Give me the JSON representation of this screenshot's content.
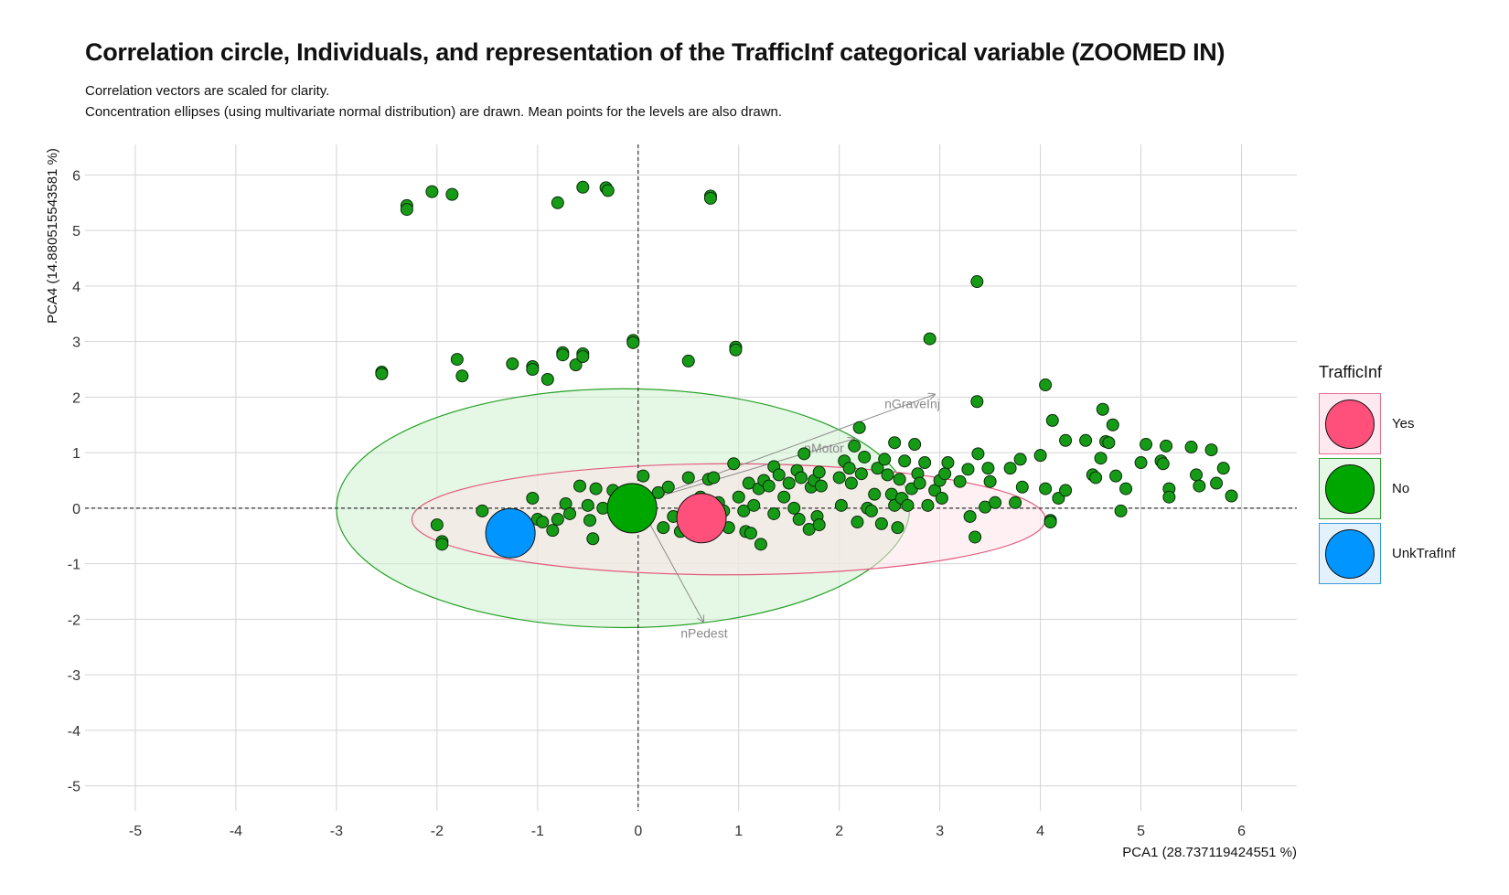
{
  "chart_data": {
    "type": "scatter",
    "title": "Correlation circle, Individuals, and representation of the TrafficInf categorical variable (ZOOMED IN)",
    "subtitle": [
      "Correlation vectors are scaled for clarity.",
      "Concentration ellipses (using multivariate normal distribution) are drawn. Mean points for the levels are also drawn."
    ],
    "xlabel": "PCA1 (28.737119424551 %)",
    "ylabel": "PCA4 (14.880515543581 %)",
    "xlim": [
      -5.5,
      6.55
    ],
    "ylim": [
      -5.55,
      6.55
    ],
    "xticks": [
      -5,
      -4,
      -3,
      -2,
      -1,
      0,
      1,
      2,
      3,
      4,
      5,
      6
    ],
    "yticks": [
      -5,
      -4,
      -3,
      -2,
      -1,
      0,
      1,
      2,
      3,
      4,
      5,
      6
    ],
    "grid": true,
    "legend": {
      "title": "TrafficInf",
      "placement": "right",
      "entries": [
        {
          "label": "Yes",
          "color": "#FF4F7B",
          "key_fill": "#FFE8EF",
          "key_border": "#E5738F"
        },
        {
          "label": "No",
          "color": "#00A600",
          "key_fill": "#E5F7E5",
          "key_border": "#35A335"
        },
        {
          "label": "UnkTrafInf",
          "color": "#0095FF",
          "key_fill": "#E3F1FC",
          "key_border": "#3A9AD9"
        }
      ]
    },
    "point_color": "#169B16",
    "ellipses": [
      {
        "level": "No",
        "center": [
          -0.15,
          0.0
        ],
        "rx": 2.85,
        "ry": 2.15,
        "stroke": "#27A127",
        "fill": "#CFF0CF"
      },
      {
        "level": "Yes",
        "center": [
          0.9,
          -0.2
        ],
        "rx": 3.15,
        "ry": 1.0,
        "stroke": "#E25B7E",
        "fill": "#FDE3EA"
      }
    ],
    "mean_points": [
      {
        "level": "UnkTrafInf",
        "x": -1.27,
        "y": -0.45,
        "color": "#0095FF"
      },
      {
        "level": "No",
        "x": -0.06,
        "y": 0.0,
        "color": "#00A600"
      },
      {
        "level": "Yes",
        "x": 0.63,
        "y": -0.18,
        "color": "#FF4F7B"
      }
    ],
    "vectors": [
      {
        "label": "nGraveInj",
        "x": 2.95,
        "y": 2.05
      },
      {
        "label": "nMotor",
        "x": 2.15,
        "y": 1.25
      },
      {
        "label": "nPedest",
        "x": 0.65,
        "y": -2.05
      }
    ],
    "points": [
      [
        -2.3,
        5.45
      ],
      [
        -2.3,
        5.38
      ],
      [
        -2.05,
        5.7
      ],
      [
        -1.85,
        5.65
      ],
      [
        -0.8,
        5.5
      ],
      [
        -0.55,
        5.78
      ],
      [
        -0.32,
        5.77
      ],
      [
        -0.3,
        5.72
      ],
      [
        0.72,
        5.62
      ],
      [
        0.72,
        5.58
      ],
      [
        -2.55,
        2.45
      ],
      [
        -2.55,
        2.42
      ],
      [
        -1.8,
        2.68
      ],
      [
        -1.75,
        2.38
      ],
      [
        -1.25,
        2.6
      ],
      [
        -1.05,
        2.55
      ],
      [
        -1.05,
        2.5
      ],
      [
        -0.9,
        2.32
      ],
      [
        -0.75,
        2.8
      ],
      [
        -0.75,
        2.76
      ],
      [
        -0.62,
        2.58
      ],
      [
        -0.55,
        2.78
      ],
      [
        -0.55,
        2.73
      ],
      [
        -0.05,
        3.02
      ],
      [
        -0.05,
        2.98
      ],
      [
        0.5,
        2.65
      ],
      [
        0.97,
        2.9
      ],
      [
        0.97,
        2.85
      ],
      [
        2.9,
        3.05
      ],
      [
        3.37,
        4.08
      ],
      [
        3.37,
        1.92
      ],
      [
        4.05,
        2.22
      ],
      [
        -2.0,
        -0.3
      ],
      [
        -1.95,
        -0.6
      ],
      [
        -1.95,
        -0.65
      ],
      [
        -1.55,
        -0.05
      ],
      [
        -1.05,
        0.18
      ],
      [
        -1.0,
        -0.2
      ],
      [
        -0.95,
        -0.25
      ],
      [
        -0.85,
        -0.4
      ],
      [
        -0.8,
        -0.2
      ],
      [
        -0.72,
        0.08
      ],
      [
        -0.68,
        -0.1
      ],
      [
        -0.58,
        0.4
      ],
      [
        -0.5,
        0.05
      ],
      [
        -0.48,
        -0.22
      ],
      [
        -0.45,
        -0.55
      ],
      [
        -0.42,
        0.35
      ],
      [
        -0.35,
        0.0
      ],
      [
        -0.25,
        0.32
      ],
      [
        0.05,
        0.58
      ],
      [
        0.2,
        0.28
      ],
      [
        0.25,
        -0.35
      ],
      [
        0.3,
        0.38
      ],
      [
        0.35,
        -0.15
      ],
      [
        0.42,
        -0.42
      ],
      [
        0.5,
        0.55
      ],
      [
        0.55,
        -0.05
      ],
      [
        0.62,
        0.2
      ],
      [
        0.7,
        0.52
      ],
      [
        0.75,
        0.55
      ],
      [
        0.8,
        0.1
      ],
      [
        0.85,
        -0.05
      ],
      [
        0.9,
        -0.35
      ],
      [
        0.95,
        0.8
      ],
      [
        1.0,
        0.2
      ],
      [
        1.05,
        -0.05
      ],
      [
        1.07,
        -0.42
      ],
      [
        1.1,
        0.45
      ],
      [
        1.12,
        -0.45
      ],
      [
        1.15,
        0.05
      ],
      [
        1.2,
        0.35
      ],
      [
        1.22,
        -0.65
      ],
      [
        1.25,
        0.5
      ],
      [
        1.3,
        0.4
      ],
      [
        1.35,
        0.75
      ],
      [
        1.35,
        -0.1
      ],
      [
        1.4,
        0.6
      ],
      [
        1.45,
        0.2
      ],
      [
        1.5,
        0.45
      ],
      [
        1.55,
        0.0
      ],
      [
        1.58,
        0.68
      ],
      [
        1.6,
        -0.2
      ],
      [
        1.62,
        0.55
      ],
      [
        1.65,
        0.98
      ],
      [
        1.7,
        -0.38
      ],
      [
        1.72,
        0.38
      ],
      [
        1.75,
        0.5
      ],
      [
        1.78,
        -0.15
      ],
      [
        1.8,
        0.65
      ],
      [
        1.8,
        -0.3
      ],
      [
        1.82,
        0.4
      ],
      [
        2.0,
        0.55
      ],
      [
        2.02,
        0.05
      ],
      [
        2.05,
        0.85
      ],
      [
        2.1,
        0.72
      ],
      [
        2.12,
        0.45
      ],
      [
        2.15,
        1.12
      ],
      [
        2.18,
        -0.25
      ],
      [
        2.2,
        1.45
      ],
      [
        2.22,
        0.62
      ],
      [
        2.25,
        0.92
      ],
      [
        2.28,
        0.0
      ],
      [
        2.32,
        -0.05
      ],
      [
        2.35,
        0.25
      ],
      [
        2.38,
        0.72
      ],
      [
        2.42,
        -0.28
      ],
      [
        2.45,
        0.88
      ],
      [
        2.48,
        0.6
      ],
      [
        2.52,
        0.25
      ],
      [
        2.55,
        0.05
      ],
      [
        2.55,
        1.18
      ],
      [
        2.58,
        -0.35
      ],
      [
        2.6,
        0.52
      ],
      [
        2.62,
        0.18
      ],
      [
        2.65,
        0.85
      ],
      [
        2.68,
        0.05
      ],
      [
        2.72,
        0.35
      ],
      [
        2.75,
        1.15
      ],
      [
        2.78,
        0.62
      ],
      [
        2.8,
        0.45
      ],
      [
        2.85,
        0.82
      ],
      [
        2.88,
        0.05
      ],
      [
        2.95,
        0.32
      ],
      [
        3.0,
        0.5
      ],
      [
        3.02,
        0.18
      ],
      [
        3.05,
        0.62
      ],
      [
        3.08,
        0.82
      ],
      [
        3.2,
        0.48
      ],
      [
        3.28,
        0.7
      ],
      [
        3.3,
        -0.15
      ],
      [
        3.35,
        -0.52
      ],
      [
        3.38,
        0.98
      ],
      [
        3.45,
        0.02
      ],
      [
        3.48,
        0.72
      ],
      [
        3.5,
        0.48
      ],
      [
        3.55,
        0.1
      ],
      [
        3.7,
        0.72
      ],
      [
        3.75,
        0.1
      ],
      [
        3.8,
        0.88
      ],
      [
        3.82,
        0.38
      ],
      [
        4.0,
        0.95
      ],
      [
        4.05,
        0.35
      ],
      [
        4.1,
        -0.22
      ],
      [
        4.1,
        -0.25
      ],
      [
        4.12,
        1.58
      ],
      [
        4.18,
        0.18
      ],
      [
        4.25,
        0.32
      ],
      [
        4.25,
        1.22
      ],
      [
        4.45,
        1.22
      ],
      [
        4.52,
        0.6
      ],
      [
        4.55,
        0.55
      ],
      [
        4.6,
        0.9
      ],
      [
        4.62,
        1.78
      ],
      [
        4.65,
        1.2
      ],
      [
        4.68,
        1.18
      ],
      [
        4.72,
        1.5
      ],
      [
        4.75,
        0.58
      ],
      [
        4.8,
        -0.05
      ],
      [
        4.85,
        0.35
      ],
      [
        5.0,
        0.82
      ],
      [
        5.05,
        1.15
      ],
      [
        5.2,
        0.85
      ],
      [
        5.22,
        0.8
      ],
      [
        5.25,
        1.12
      ],
      [
        5.28,
        0.35
      ],
      [
        5.28,
        0.2
      ],
      [
        5.5,
        1.1
      ],
      [
        5.55,
        0.6
      ],
      [
        5.58,
        0.4
      ],
      [
        5.7,
        1.05
      ],
      [
        5.75,
        0.45
      ],
      [
        5.82,
        0.72
      ],
      [
        5.9,
        0.22
      ]
    ]
  }
}
